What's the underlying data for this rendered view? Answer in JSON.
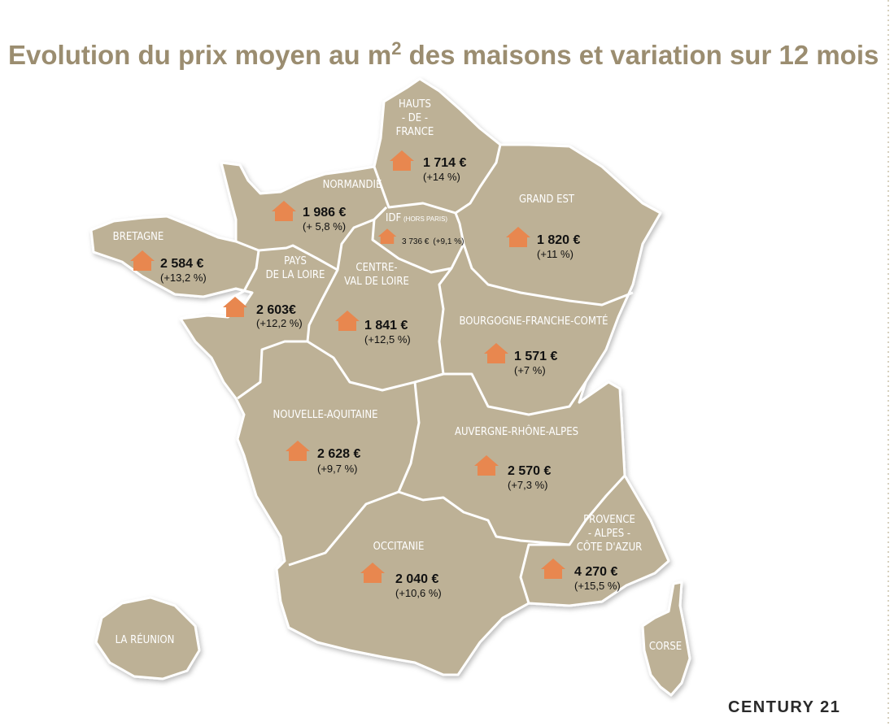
{
  "title": {
    "before": "Evolution du prix moyen au m",
    "superscript": "2",
    "after": " des maisons et variation sur 12 mois"
  },
  "regions": [
    {
      "name": [
        "HAUTS",
        "- DE -",
        "FRANCE"
      ],
      "price": "1 714 €",
      "variation": "(+14 %)"
    },
    {
      "name": [
        "NORMANDIE"
      ],
      "price": "1 986 €",
      "variation": "(+ 5,8 %)"
    },
    {
      "name": [
        "IDF"
      ],
      "note": "(HORS PARIS)",
      "price": "3 736 €",
      "variation": "(+9,1 %)"
    },
    {
      "name": [
        "GRAND EST"
      ],
      "price": "1 820 €",
      "variation": "(+11 %)"
    },
    {
      "name": [
        "BRETAGNE"
      ],
      "price": "2 584 €",
      "variation": "(+13,2 %)"
    },
    {
      "name": [
        "PAYS",
        "DE LA LOIRE"
      ],
      "price": "2 603€",
      "variation": "(+12,2 %)"
    },
    {
      "name": [
        "CENTRE-",
        "VAL DE LOIRE"
      ],
      "price": "1 841 €",
      "variation": "(+12,5 %)"
    },
    {
      "name": [
        "BOURGOGNE-FRANCHE-COMTÉ"
      ],
      "price": "1 571 €",
      "variation": "(+7 %)"
    },
    {
      "name": [
        "NOUVELLE-AQUITAINE"
      ],
      "price": "2 628 €",
      "variation": "(+9,7 %)"
    },
    {
      "name": [
        "AUVERGNE-RHÔNE-ALPES"
      ],
      "price": "2 570 €",
      "variation": "(+7,3 %)"
    },
    {
      "name": [
        "PROVENCE",
        "- ALPES -",
        "CÔTE D'AZUR"
      ],
      "price": "4 270 €",
      "variation": "(+15,5 %)"
    },
    {
      "name": [
        "OCCITANIE"
      ],
      "price": "2 040 €",
      "variation": "(+10,6 %)"
    }
  ],
  "islands": [
    "LA RÉUNION",
    "CORSE"
  ],
  "logo": "CENTURY 21"
}
